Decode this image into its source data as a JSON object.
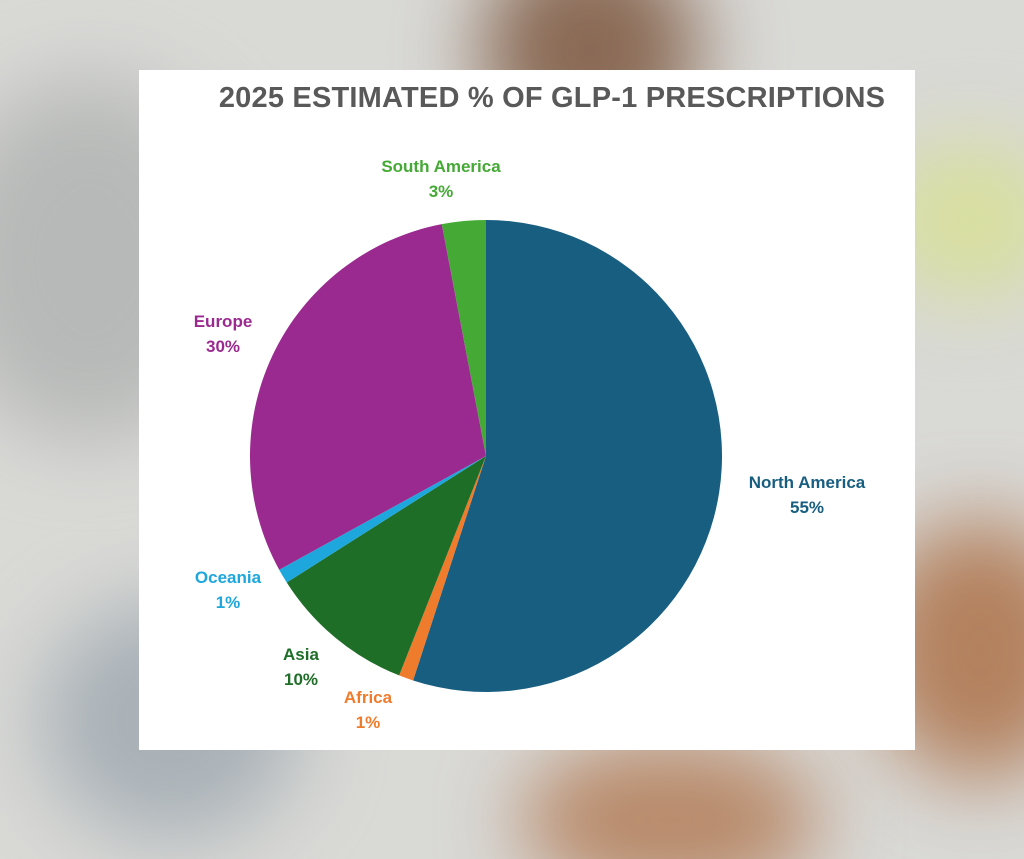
{
  "colors": {
    "north_america": "#185e80",
    "africa": "#ef7b2d",
    "asia": "#1e6e28",
    "oceania": "#1ea7dc",
    "europe": "#9b2a90",
    "south_america": "#45a935",
    "title": "#595959"
  },
  "chart_data": {
    "type": "pie",
    "title": "2025 ESTIMATED % OF GLP-1 PRESCRIPTIONS",
    "categories": [
      "North America",
      "Africa",
      "Asia",
      "Oceania",
      "Europe",
      "South America"
    ],
    "values": [
      55,
      1,
      10,
      1,
      30,
      3
    ],
    "value_labels": [
      "55%",
      "1%",
      "10%",
      "1%",
      "30%",
      "3%"
    ],
    "start_angle_deg": 0,
    "direction": "clockwise"
  }
}
